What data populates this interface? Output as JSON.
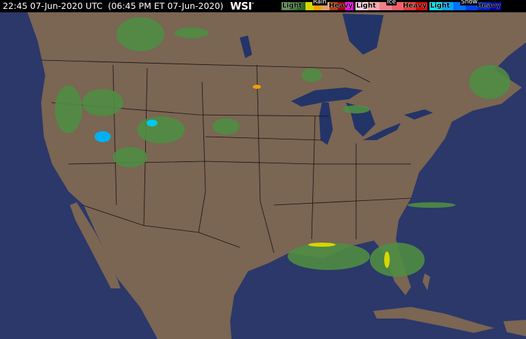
{
  "header": {
    "timestamp": "22:45 07-Jun-2020 UTC  (06:45 PM ET 07-Jun-2020)",
    "logo": "WSI",
    "logo_mark": "°"
  },
  "legend": {
    "rain": {
      "title": "Rain",
      "light": "Light",
      "heavy": "Heavy",
      "colors": [
        "#5a8a50",
        "#3c7a32",
        "#2a6420",
        "#d6d600",
        "#f0a000",
        "#e0a070",
        "#b04010",
        "#a00000",
        "#ff00ff"
      ]
    },
    "ice": {
      "title": "Ice",
      "light": "Light",
      "heavy": "Heavy",
      "colors": [
        "#f8d0d8",
        "#f4a8b0",
        "#f08088",
        "#f06068",
        "#e83838",
        "#e00000"
      ]
    },
    "snow": {
      "title": "Snow",
      "light": "Light",
      "heavy": "Heavy",
      "colors": [
        "#00e0f0",
        "#00a8f8",
        "#0070ff",
        "#0040f0",
        "#0020c0",
        "#0000a0"
      ]
    }
  },
  "map": {
    "ocean_color": "#2b3869",
    "land_color": "#7b6553",
    "lake_color": "#233468",
    "radar_color": "#4f8c44"
  }
}
